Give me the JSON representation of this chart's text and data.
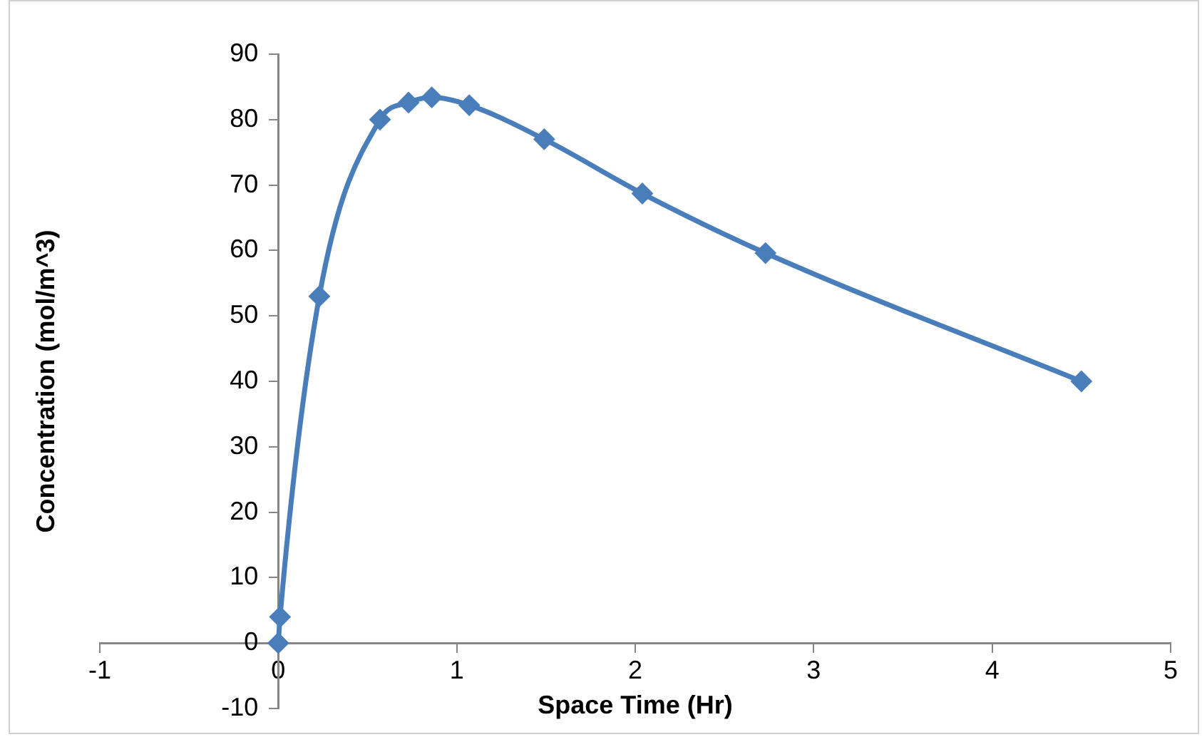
{
  "chart_data": {
    "type": "line",
    "xlabel": "Space Time (Hr)",
    "ylabel": "Concentration (mol/m^3)",
    "x": [
      0,
      0.01,
      0.23,
      0.57,
      0.73,
      0.86,
      1.07,
      1.49,
      2.04,
      2.73,
      4.5
    ],
    "series": [
      {
        "color": "#4a7ebb",
        "values": [
          0,
          4,
          53,
          80,
          82.6,
          83.4,
          82.2,
          77,
          68.7,
          59.6,
          40
        ]
      }
    ],
    "xlim": [
      -1,
      5
    ],
    "xticks": [
      -1,
      0,
      1,
      2,
      3,
      4,
      5
    ],
    "ylim": [
      -10,
      90
    ],
    "yticks": [
      -10,
      0,
      10,
      20,
      30,
      40,
      50,
      60,
      70,
      80,
      90
    ],
    "grid": false,
    "legend": false,
    "marker": "diamond",
    "line_style": "solid"
  }
}
